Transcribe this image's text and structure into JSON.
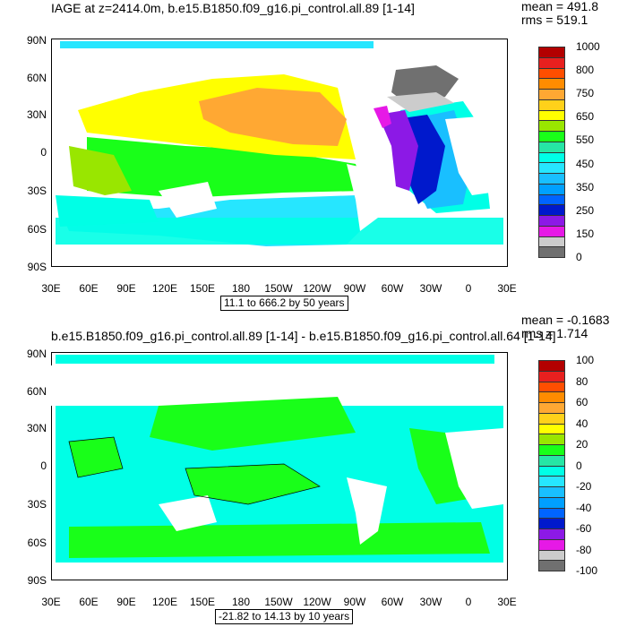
{
  "panels": [
    {
      "id": "top",
      "title": "IAGE at z=2414.0m, b.e15.B1850.f09_g16.pi_control.all.89 [1-14]",
      "stats": {
        "mean": "mean = 491.8",
        "rms": "rms = 519.1"
      },
      "range_text": "11.1 to 666.2 by 50 years",
      "colorbar": {
        "labels": [
          "1000",
          "800",
          "750",
          "650",
          "550",
          "450",
          "350",
          "250",
          "150",
          "0"
        ],
        "colors": [
          "#b30000",
          "#e8201f",
          "#ff4e00",
          "#ff8c00",
          "#ffa833",
          "#ffd11a",
          "#ffff00",
          "#99e600",
          "#19ff19",
          "#26e6a5",
          "#00ffe6",
          "#26e6ff",
          "#19bfff",
          "#00a0ff",
          "#0064ff",
          "#0019cc",
          "#8c19e6",
          "#e619e6",
          "#cccccc",
          "#707070"
        ]
      }
    },
    {
      "id": "bottom",
      "title": "b.e15.B1850.f09_g16.pi_control.all.89 [1-14] - b.e15.B1850.f09_g16.pi_control.all.64 [1-14]",
      "stats": {
        "mean": "mean = -0.1683",
        "rms": "rms = 1.714"
      },
      "range_text": "-21.82 to 14.13 by 10 years",
      "colorbar": {
        "labels": [
          "100",
          "80",
          "60",
          "40",
          "20",
          "0",
          "-20",
          "-40",
          "-60",
          "-80",
          "-100"
        ],
        "colors": [
          "#b30000",
          "#e8201f",
          "#ff4e00",
          "#ff8c00",
          "#ffa833",
          "#ffd11a",
          "#ffff00",
          "#99e600",
          "#19ff19",
          "#26e6a5",
          "#00ffe6",
          "#26e6ff",
          "#19bfff",
          "#00a0ff",
          "#0064ff",
          "#0019cc",
          "#8c19e6",
          "#e619e6",
          "#cccccc",
          "#707070"
        ]
      }
    }
  ],
  "axes": {
    "lat_labels": [
      "90N",
      "60N",
      "30N",
      "0",
      "30S",
      "60S",
      "90S"
    ],
    "lon_labels": [
      "30E",
      "60E",
      "90E",
      "120E",
      "150E",
      "180",
      "150W",
      "120W",
      "90W",
      "60W",
      "30W",
      "0",
      "30E"
    ]
  },
  "colors": {
    "ocean_yellow": "#ffd11a",
    "ocean_lightyellow": "#ffff00",
    "ocean_orange": "#ffa833",
    "ocean_green": "#19ff19",
    "ocean_lime": "#99e600",
    "ocean_teal": "#26e6a5",
    "ocean_cyan": "#00ffe6",
    "ocean_lightblue": "#26e6ff",
    "ocean_sky": "#19bfff",
    "ocean_blue": "#0064ff",
    "ocean_darkblue": "#0019cc",
    "ocean_purple": "#8c19e6",
    "ocean_magenta": "#e619e6",
    "ocean_gray": "#707070",
    "ocean_lightgray": "#cccccc"
  }
}
